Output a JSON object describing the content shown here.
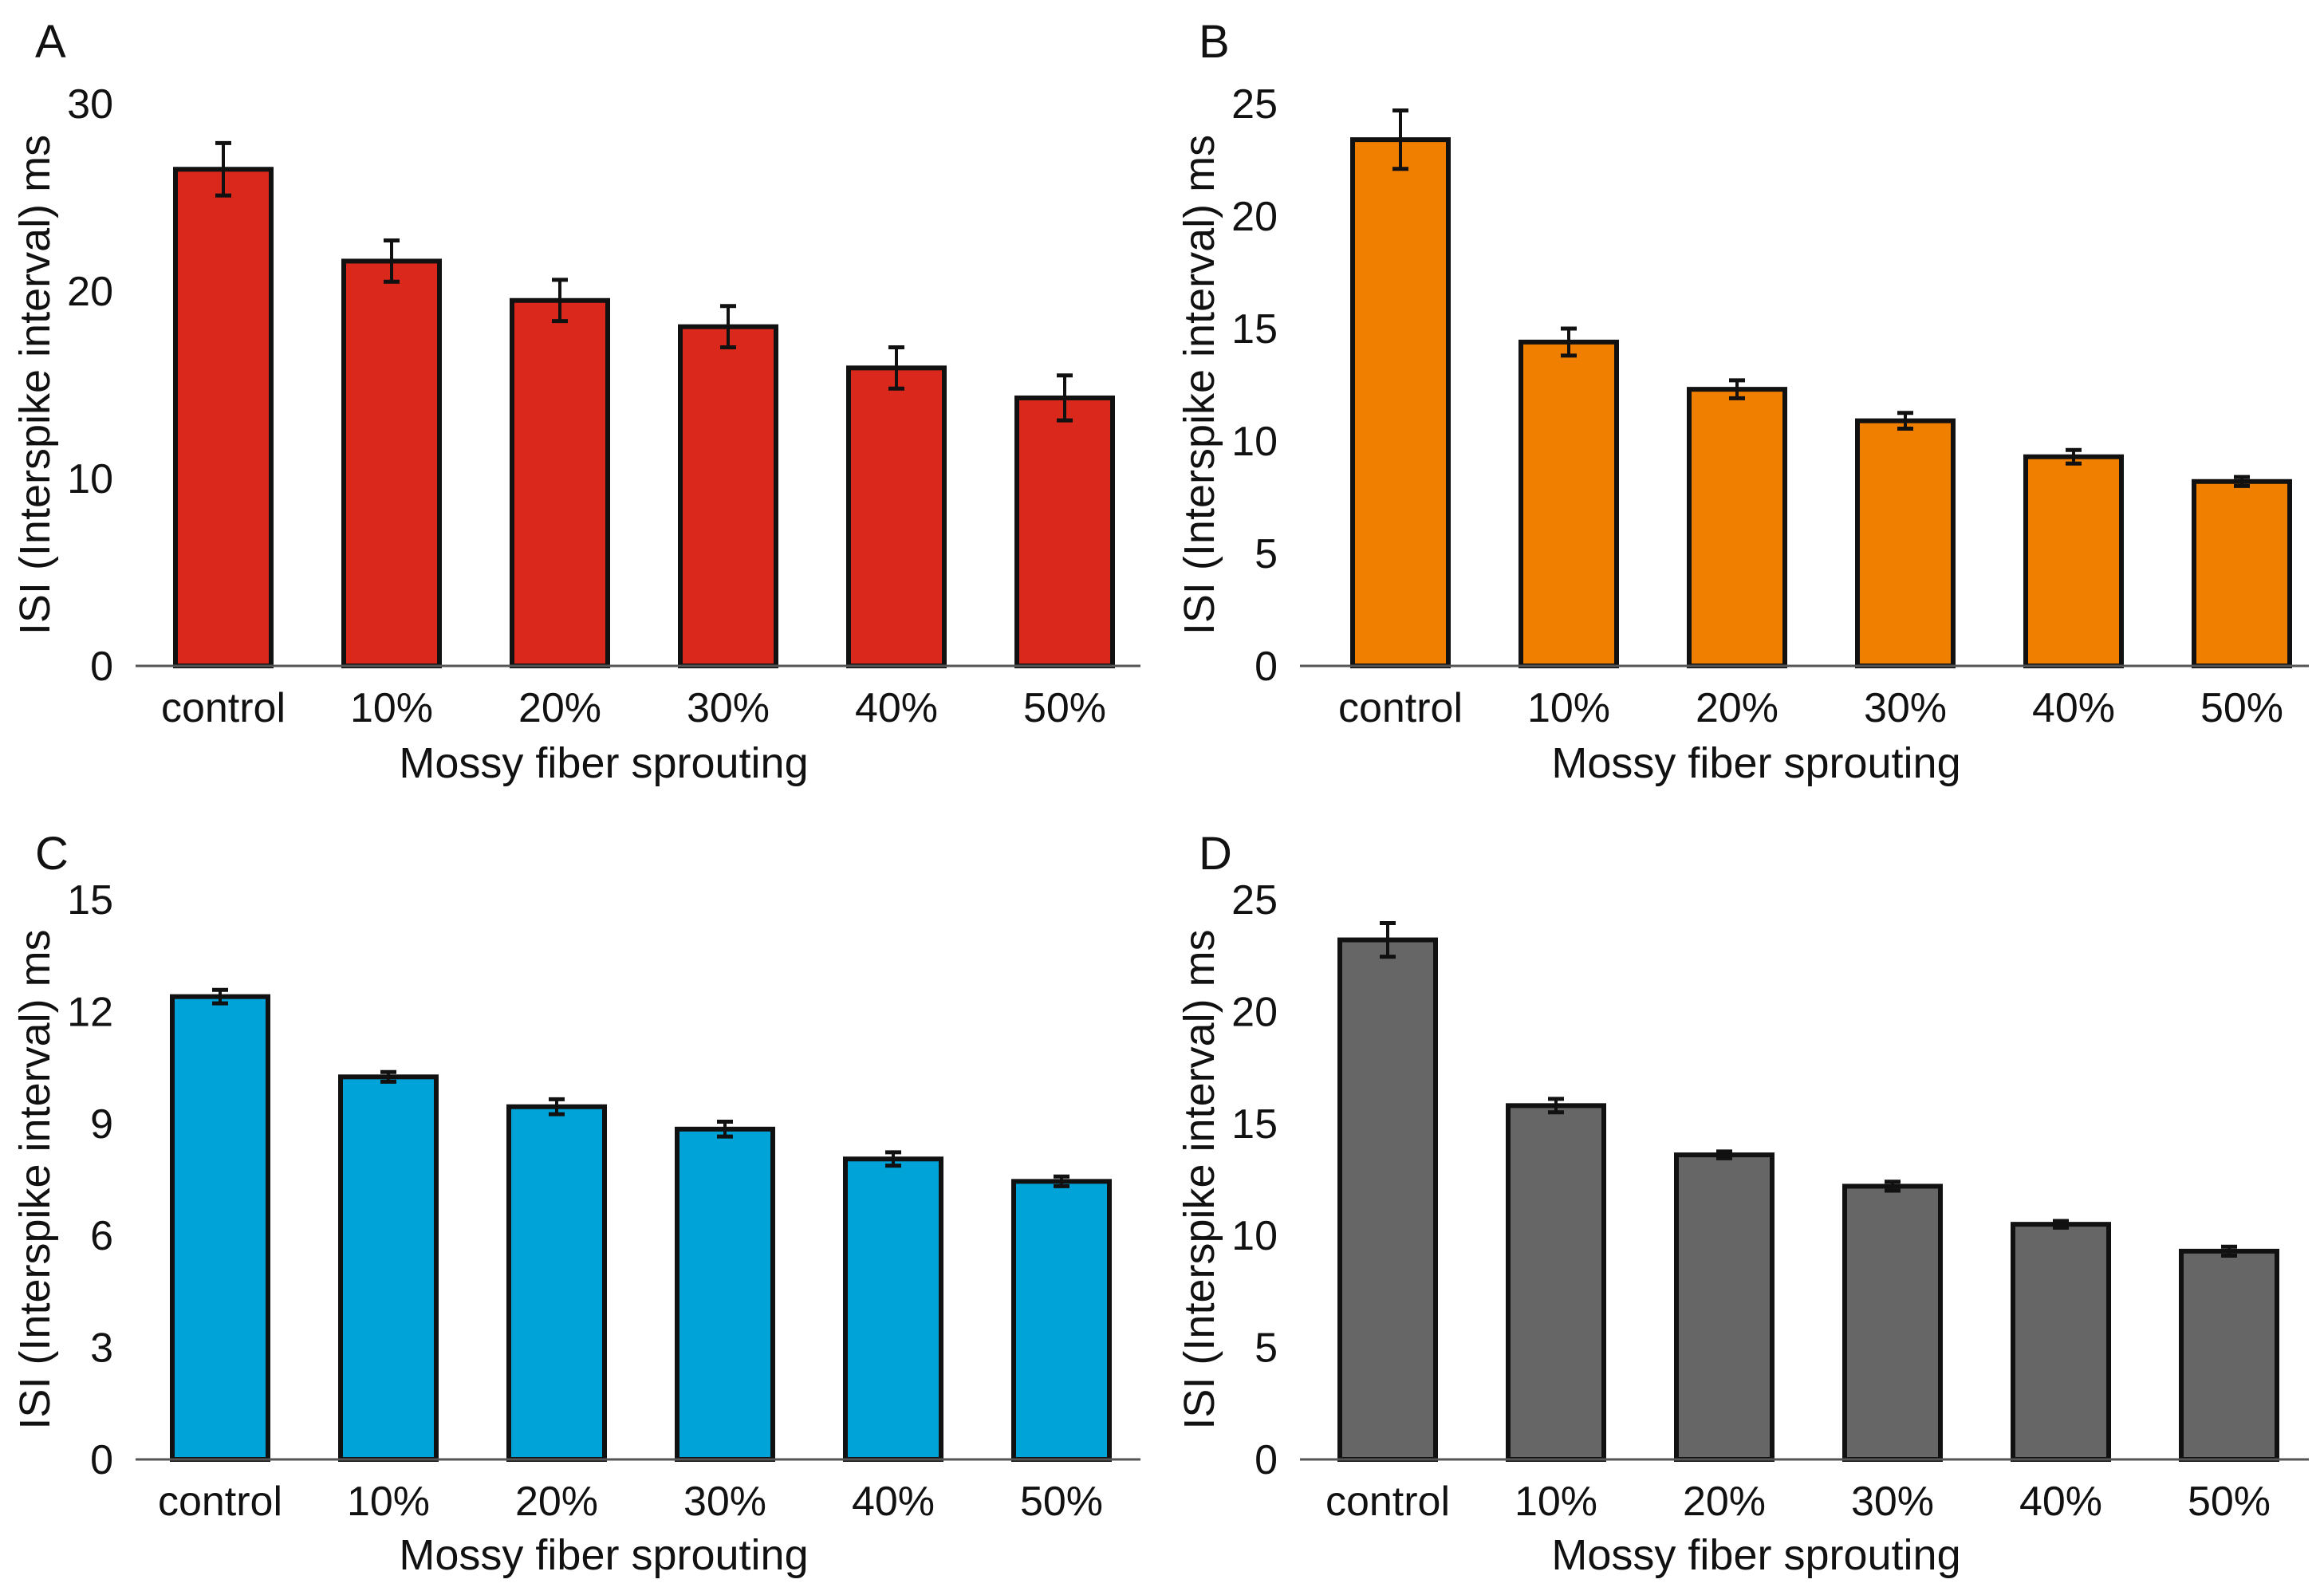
{
  "chart_data": [
    {
      "type": "bar",
      "panel_label": "A",
      "bar_color": "#DA291C",
      "categories": [
        "control",
        "10%",
        "20%",
        "30%",
        "40%",
        "50%"
      ],
      "values": [
        26.5,
        21.6,
        19.5,
        18.1,
        15.9,
        14.3
      ],
      "errors": [
        1.4,
        1.1,
        1.1,
        1.1,
        1.1,
        1.2
      ],
      "xlabel": "Mossy fiber sprouting",
      "ylabel": "ISI (Interspike interval) ms",
      "ylim": [
        0,
        30
      ],
      "yticks": [
        0,
        10,
        20,
        30
      ]
    },
    {
      "type": "bar",
      "panel_label": "B",
      "bar_color": "#F07F00",
      "categories": [
        "control",
        "10%",
        "20%",
        "30%",
        "40%",
        "50%"
      ],
      "values": [
        23.4,
        14.4,
        12.3,
        10.9,
        9.3,
        8.2
      ],
      "errors": [
        1.3,
        0.6,
        0.4,
        0.35,
        0.3,
        0.2
      ],
      "xlabel": "Mossy fiber sprouting",
      "ylabel": "ISI (Interspike interval) ms",
      "ylim": [
        0,
        25
      ],
      "yticks": [
        0,
        5,
        10,
        15,
        20,
        25
      ]
    },
    {
      "type": "bar",
      "panel_label": "C",
      "bar_color": "#00A3D8",
      "categories": [
        "control",
        "10%",
        "20%",
        "30%",
        "40%",
        "50%"
      ],
      "values": [
        12.4,
        10.25,
        9.45,
        8.85,
        8.05,
        7.45
      ],
      "errors": [
        0.18,
        0.13,
        0.2,
        0.2,
        0.18,
        0.13
      ],
      "xlabel": "Mossy fiber sprouting",
      "ylabel": "ISI (Interspike interval) ms",
      "ylim": [
        0,
        15
      ],
      "yticks": [
        0,
        3,
        6,
        9,
        12,
        15
      ]
    },
    {
      "type": "bar",
      "panel_label": "D",
      "bar_color": "#666666",
      "categories": [
        "control",
        "10%",
        "20%",
        "30%",
        "40%",
        "50%"
      ],
      "values": [
        23.2,
        15.8,
        13.6,
        12.2,
        10.5,
        9.3
      ],
      "errors": [
        0.75,
        0.3,
        0.15,
        0.2,
        0.15,
        0.2
      ],
      "xlabel": "Mossy fiber sprouting",
      "ylabel": "ISI (Interspike interval) ms",
      "ylim": [
        0,
        25
      ],
      "yticks": [
        0,
        5,
        10,
        15,
        20,
        25
      ]
    }
  ]
}
